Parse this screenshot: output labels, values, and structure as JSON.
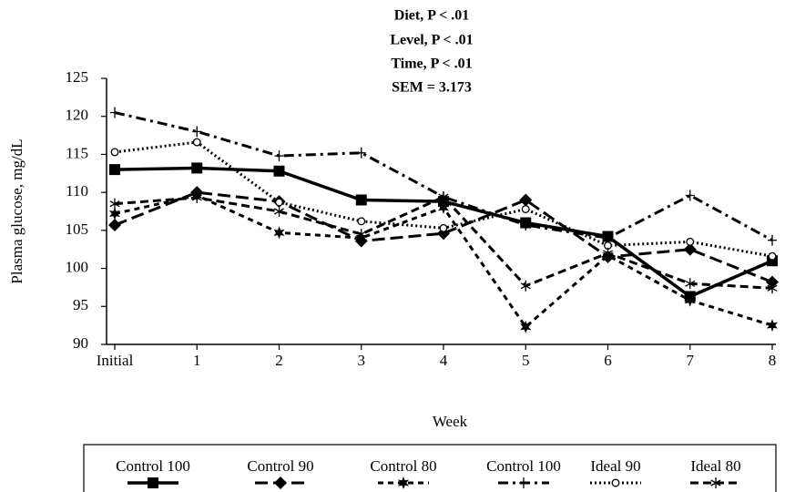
{
  "chart_data": {
    "type": "line",
    "annotations": [
      "Diet, P < .01",
      "Level, P < .01",
      "Time, P < .01",
      "SEM = 3.173"
    ],
    "xlabel": "Week",
    "ylabel": "Plasma glucose, mg/dL",
    "categories": [
      "Initial",
      "1",
      "2",
      "3",
      "4",
      "5",
      "6",
      "7",
      "8"
    ],
    "ylim": [
      90,
      125
    ],
    "yticks": [
      90,
      95,
      100,
      105,
      110,
      115,
      120,
      125
    ],
    "series": [
      {
        "name": "Control 100",
        "color": "#000000",
        "line_style": "solid",
        "marker": "square",
        "values": [
          113,
          113.2,
          112.8,
          109,
          108.8,
          106,
          104.2,
          96.3,
          101
        ]
      },
      {
        "name": "Control 90",
        "color": "#000000",
        "line_style": "long-dash",
        "marker": "diamond",
        "values": [
          105.7,
          110,
          108.8,
          103.6,
          104.6,
          109,
          101.5,
          102.5,
          98.2
        ]
      },
      {
        "name": "Control 80",
        "color": "#000000",
        "line_style": "short-dash",
        "marker": "star",
        "values": [
          107.2,
          109.6,
          104.7,
          104,
          108,
          92.3,
          101.7,
          95.8,
          92.5
        ]
      },
      {
        "name": "Control 100",
        "color": "#000000",
        "line_style": "dash-dot",
        "marker": "plus",
        "values": [
          120.5,
          118,
          114.8,
          115.2,
          109.4,
          105.7,
          104,
          109.6,
          103.7
        ]
      },
      {
        "name": "Ideal 90",
        "color": "#000000",
        "line_style": "dotted",
        "marker": "circle",
        "values": [
          115.3,
          116.6,
          108.7,
          106.2,
          105.3,
          107.8,
          103,
          103.5,
          101.6
        ]
      },
      {
        "name": "Ideal 80",
        "color": "#000000",
        "line_style": "dashed",
        "marker": "asterisk",
        "values": [
          108.5,
          109.3,
          107.5,
          104.5,
          109.4,
          97.7,
          102,
          98,
          97.4
        ]
      }
    ]
  }
}
